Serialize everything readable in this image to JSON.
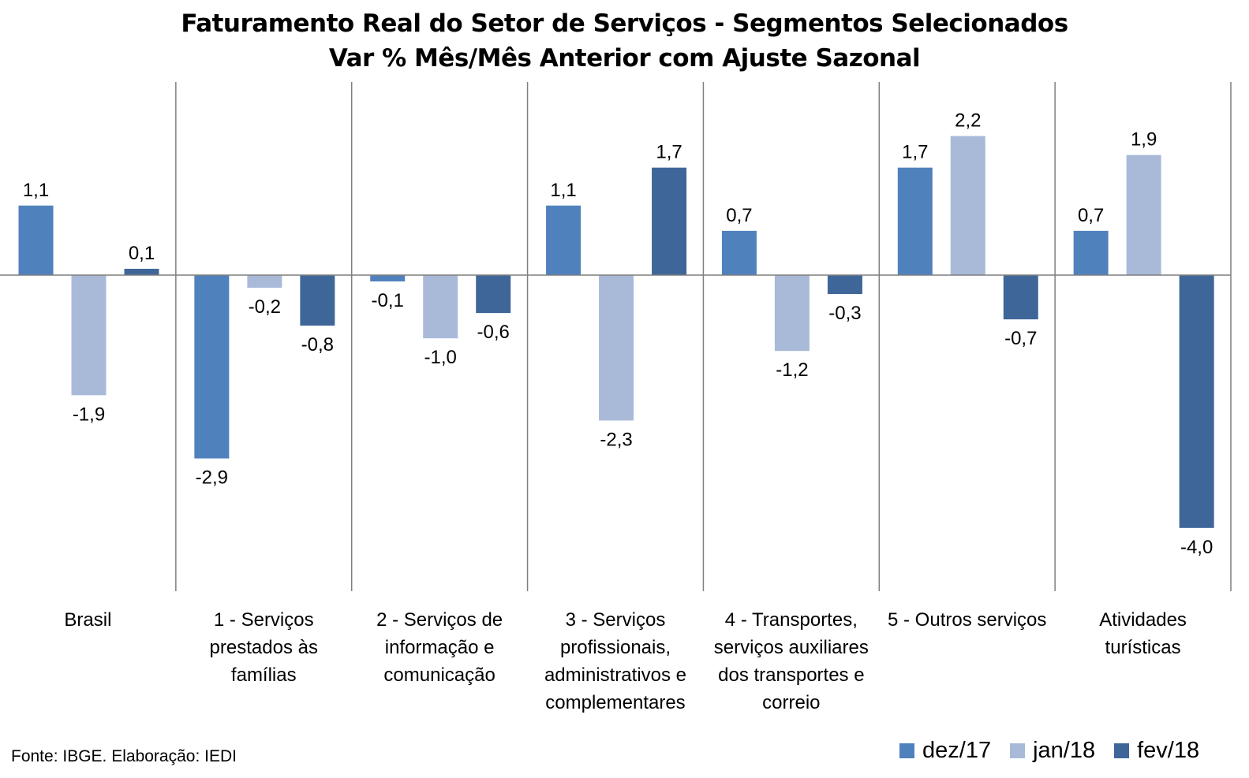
{
  "title_line1": "Faturamento Real do Setor de Serviços - Segmentos Selecionados",
  "title_line2": "Var % Mês/Mês Anterior com Ajuste Sazonal",
  "source": "Fonte: IBGE. Elaboração: IEDI",
  "chart_data": {
    "type": "bar",
    "title": "Faturamento Real do Setor de Serviços - Segmentos Selecionados",
    "subtitle": "Var % Mês/Mês Anterior com Ajuste Sazonal",
    "categories": [
      "Brasil",
      "1 - Serviços prestados às famílias",
      "2 - Serviços de informação e comunicação",
      "3 - Serviços profissionais, administrativos e complementares",
      "4 - Transportes, serviços auxiliares dos transportes e correio",
      "5 - Outros serviços",
      "Atividades turísticas"
    ],
    "category_lines": [
      [
        "Brasil"
      ],
      [
        "1 - Serviços",
        "prestados às",
        "famílias"
      ],
      [
        "2 - Serviços de",
        "informação e",
        "comunicação"
      ],
      [
        "3 - Serviços",
        "profissionais,",
        "administrativos e",
        "complementares"
      ],
      [
        "4 - Transportes,",
        "serviços auxiliares",
        "dos transportes e",
        "correio"
      ],
      [
        "5 - Outros serviços"
      ],
      [
        "Atividades",
        "turísticas"
      ]
    ],
    "series": [
      {
        "name": "dez/17",
        "color": "#4F81BD",
        "values": [
          1.1,
          -2.9,
          -0.1,
          1.1,
          0.7,
          1.7,
          0.7
        ]
      },
      {
        "name": "jan/18",
        "color": "#A9BAD8",
        "values": [
          -1.9,
          -0.2,
          -1.0,
          -2.3,
          -1.2,
          2.2,
          1.9
        ]
      },
      {
        "name": "fev/18",
        "color": "#3F6699",
        "values": [
          0.1,
          -0.8,
          -0.6,
          1.7,
          -0.3,
          -0.7,
          -4.0
        ]
      }
    ],
    "data_labels": [
      [
        "1,1",
        "-2,9",
        "-0,1",
        "1,1",
        "0,7",
        "1,7",
        "0,7"
      ],
      [
        "-1,9",
        "-0,2",
        "-1,0",
        "-2,3",
        "-1,2",
        "2,2",
        "1,9"
      ],
      [
        "0,1",
        "-0,8",
        "-0,6",
        "1,7",
        "-0,3",
        "-0,7",
        "-4,0"
      ]
    ],
    "ylim": [
      -5.0,
      3.0
    ],
    "grid": false,
    "legend_position": "bottom-right"
  }
}
